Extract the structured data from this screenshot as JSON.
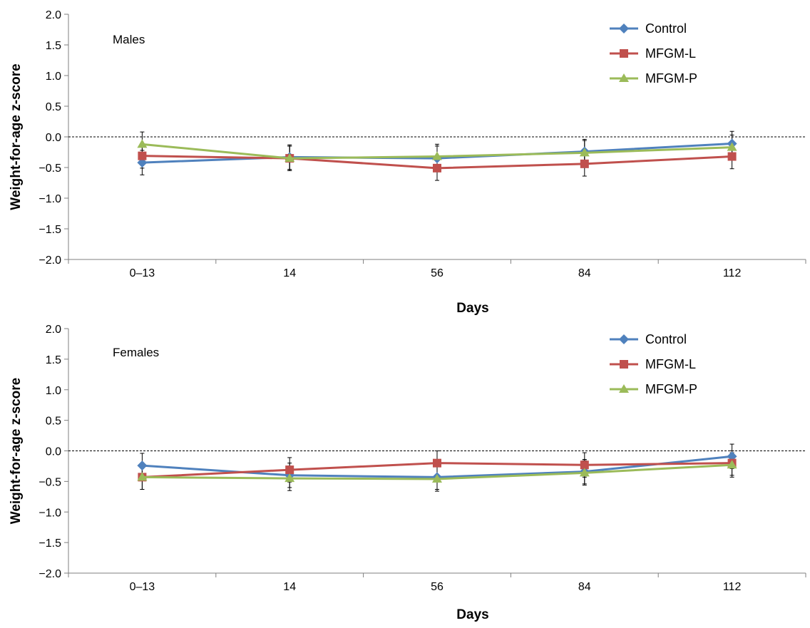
{
  "chart_data": [
    {
      "type": "line",
      "title": "",
      "panel_label": "Males",
      "xlabel": "Days",
      "ylabel": "Weight-for-age z-score",
      "categories": [
        "0–13",
        "14",
        "56",
        "84",
        "112"
      ],
      "ylim": [
        -2.0,
        2.0
      ],
      "yticks": [
        "−2.0",
        "−1.5",
        "−1.0",
        "−0.5",
        "0.0",
        "0.5",
        "1.0",
        "1.5",
        "2.0"
      ],
      "reference_line": 0.0,
      "grid": false,
      "legend_position": "top-right",
      "series": [
        {
          "name": "Control",
          "color": "#4F81BD",
          "marker": "diamond",
          "values": [
            -0.42,
            -0.33,
            -0.35,
            -0.24,
            -0.11
          ],
          "error_upper": [
            0.2,
            0.2,
            0.2,
            0.2,
            0.2
          ]
        },
        {
          "name": "MFGM-L",
          "color": "#C0504D",
          "marker": "square",
          "values": [
            -0.31,
            -0.35,
            -0.51,
            -0.44,
            -0.32
          ],
          "error_upper": [
            0.2,
            0.2,
            0.2,
            0.2,
            0.2
          ]
        },
        {
          "name": "MFGM-P",
          "color": "#9BBB59",
          "marker": "triangle",
          "values": [
            -0.12,
            -0.35,
            -0.32,
            -0.26,
            -0.17
          ],
          "error_upper": [
            0.2,
            0.2,
            0.2,
            0.2,
            0.2
          ]
        }
      ]
    },
    {
      "type": "line",
      "title": "",
      "panel_label": "Females",
      "xlabel": "Days",
      "ylabel": "Weight-for-age z-score",
      "categories": [
        "0–13",
        "14",
        "56",
        "84",
        "112"
      ],
      "ylim": [
        -2.0,
        2.0
      ],
      "yticks": [
        "−2.0",
        "−1.5",
        "−1.0",
        "−0.5",
        "0.0",
        "0.5",
        "1.0",
        "1.5",
        "2.0"
      ],
      "reference_line": 0.0,
      "grid": false,
      "legend_position": "top-right",
      "series": [
        {
          "name": "Control",
          "color": "#4F81BD",
          "marker": "diamond",
          "values": [
            -0.24,
            -0.4,
            -0.43,
            -0.34,
            -0.09
          ],
          "error_upper": [
            0.2,
            0.2,
            0.2,
            0.2,
            0.2
          ]
        },
        {
          "name": "MFGM-L",
          "color": "#C0504D",
          "marker": "square",
          "values": [
            -0.43,
            -0.31,
            -0.2,
            -0.23,
            -0.2
          ],
          "error_upper": [
            0.2,
            0.2,
            0.2,
            0.2,
            0.2
          ]
        },
        {
          "name": "MFGM-P",
          "color": "#9BBB59",
          "marker": "triangle",
          "values": [
            -0.43,
            -0.45,
            -0.46,
            -0.36,
            -0.23
          ],
          "error_upper": [
            0.2,
            0.2,
            0.2,
            0.2,
            0.2
          ]
        }
      ]
    }
  ]
}
